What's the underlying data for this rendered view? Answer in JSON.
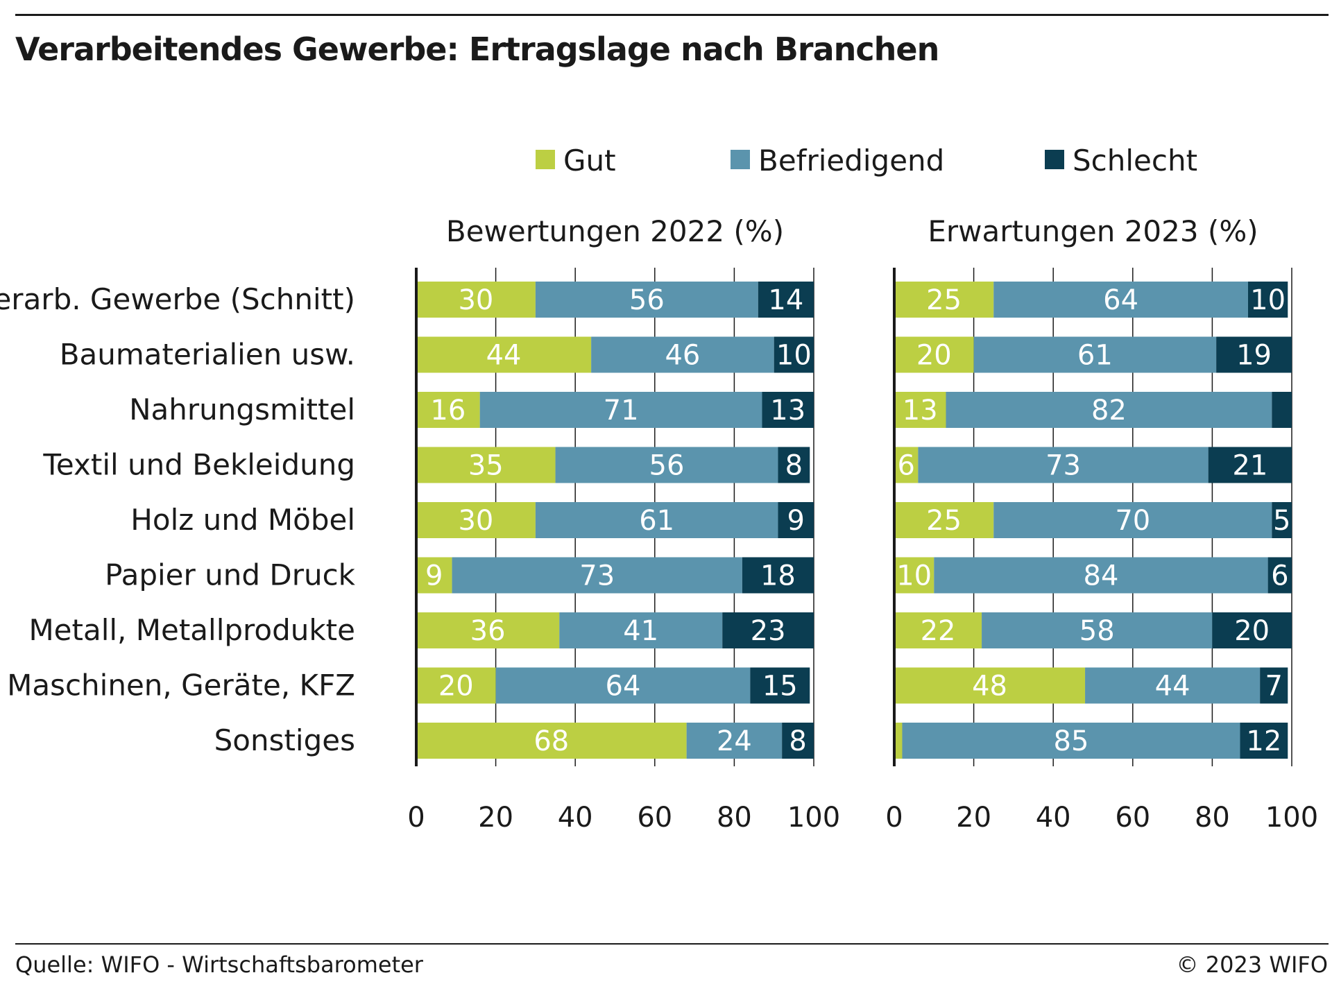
{
  "title": "Verarbeitendes Gewerbe: Ertragslage nach Branchen",
  "source": "Quelle: WIFO - Wirtschaftsbarometer",
  "copyright": "© 2023 WIFO",
  "colors": {
    "gut": "#bccf43",
    "befriedigend": "#5b94ad",
    "schlecht": "#0b3d51"
  },
  "chart_data": {
    "type": "bar",
    "orientation": "horizontal",
    "stacked": true,
    "legend": [
      "Gut",
      "Befriedigend",
      "Schlecht"
    ],
    "legend_position": "top",
    "categories": [
      "Verarb. Gewerbe (Schnitt)",
      "Baumaterialien usw.",
      "Nahrungsmittel",
      "Textil und Bekleidung",
      "Holz und Möbel",
      "Papier und Druck",
      "Metall, Metallprodukte",
      "Maschinen, Geräte, KFZ",
      "Sonstiges"
    ],
    "panels": [
      {
        "title": "Bewertungen 2022 (%)",
        "xlim": [
          0,
          100
        ],
        "xticks": [
          0,
          20,
          40,
          60,
          80,
          100
        ],
        "series": [
          {
            "name": "Gut",
            "values": [
              30,
              44,
              16,
              35,
              30,
              9,
              36,
              20,
              68
            ],
            "labels": [
              "30",
              "44",
              "16",
              "35",
              "30",
              "9",
              "36",
              "20",
              "68"
            ]
          },
          {
            "name": "Befriedigend",
            "values": [
              56,
              46,
              71,
              56,
              61,
              73,
              41,
              64,
              24
            ],
            "labels": [
              "56",
              "46",
              "71",
              "56",
              "61",
              "73",
              "41",
              "64",
              "24"
            ]
          },
          {
            "name": "Schlecht",
            "values": [
              14,
              10,
              13,
              8,
              9,
              18,
              23,
              15,
              8
            ],
            "labels": [
              "14",
              "10",
              "13",
              "8",
              "9",
              "18",
              "23",
              "15",
              "8"
            ]
          }
        ]
      },
      {
        "title": "Erwartungen 2023 (%)",
        "xlim": [
          0,
          100
        ],
        "xticks": [
          0,
          20,
          40,
          60,
          80,
          100
        ],
        "series": [
          {
            "name": "Gut",
            "values": [
              25,
              20,
              13,
              6,
              25,
              10,
              22,
              48,
              2
            ],
            "labels": [
              "25",
              "20",
              "13",
              "6",
              "25",
              "10",
              "22",
              "48",
              ""
            ]
          },
          {
            "name": "Befriedigend",
            "values": [
              64,
              61,
              82,
              73,
              70,
              84,
              58,
              44,
              85
            ],
            "labels": [
              "64",
              "61",
              "82",
              "73",
              "70",
              "84",
              "58",
              "44",
              "85"
            ]
          },
          {
            "name": "Schlecht",
            "values": [
              10,
              19,
              5,
              21,
              5,
              6,
              20,
              7,
              12
            ],
            "labels": [
              "10",
              "19",
              "",
              "21",
              "5",
              "6",
              "20",
              "7",
              "12"
            ]
          }
        ]
      }
    ]
  }
}
